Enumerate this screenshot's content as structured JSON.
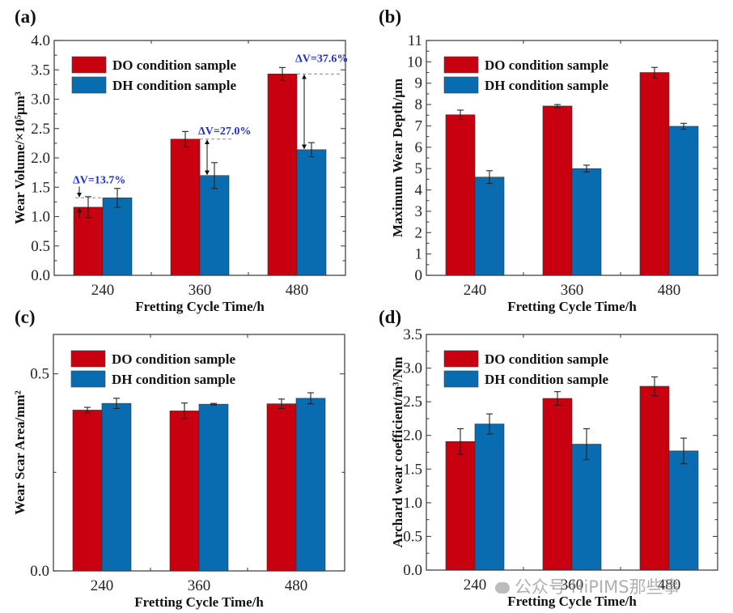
{
  "colors": {
    "DO": "#c8000f",
    "DH": "#0a6cb0",
    "annotation": "#1f2fd0"
  },
  "watermark": "公众号·HiPIMS那些事",
  "chart_data": [
    {
      "panel": "(a)",
      "type": "bar",
      "categories": [
        "240",
        "360",
        "480"
      ],
      "xlabel": "Fretting Cycle Time/h",
      "ylabel": "Wear Volume/×10⁵μm³",
      "ylim": [
        0,
        4.0
      ],
      "yticks": [
        "0.0",
        "0.5",
        "1.0",
        "1.5",
        "2.0",
        "2.5",
        "3.0",
        "3.5",
        "4.0"
      ],
      "ytick_values": [
        0,
        0.5,
        1,
        1.5,
        2,
        2.5,
        3,
        3.5,
        4
      ],
      "legend": [
        "DO condition sample",
        "DH condition sample"
      ],
      "legend_position": "top-left",
      "series": [
        {
          "name": "DO condition sample",
          "values": [
            1.16,
            2.32,
            3.43
          ],
          "errors": [
            0.18,
            0.13,
            0.11
          ]
        },
        {
          "name": "DH condition sample",
          "values": [
            1.32,
            1.7,
            2.14
          ],
          "errors": [
            0.16,
            0.22,
            0.12
          ]
        }
      ],
      "annotations": [
        "ΔV=13.7%",
        "ΔV=27.0%",
        "ΔV=37.6%"
      ]
    },
    {
      "panel": "(b)",
      "type": "bar",
      "categories": [
        "240",
        "360",
        "480"
      ],
      "xlabel": "Fretting Cycle Time/h",
      "ylabel": "Maximum Wear Depth/μm",
      "ylim": [
        0,
        11
      ],
      "yticks": [
        "0",
        "1",
        "2",
        "3",
        "4",
        "5",
        "6",
        "7",
        "8",
        "9",
        "10",
        "11"
      ],
      "ytick_values": [
        0,
        1,
        2,
        3,
        4,
        5,
        6,
        7,
        8,
        9,
        10,
        11
      ],
      "legend": [
        "DO condition sample",
        "DH condition sample"
      ],
      "legend_position": "top-left",
      "series": [
        {
          "name": "DO condition sample",
          "values": [
            7.52,
            7.93,
            9.5
          ],
          "errors": [
            0.22,
            0.07,
            0.24
          ]
        },
        {
          "name": "DH condition sample",
          "values": [
            4.6,
            5.0,
            6.98
          ],
          "errors": [
            0.3,
            0.16,
            0.14
          ]
        }
      ]
    },
    {
      "panel": "(c)",
      "type": "bar",
      "categories": [
        "240",
        "360",
        "480"
      ],
      "xlabel": "Fretting Cycle Time/h",
      "ylabel": "Wear Scar Area/mm²",
      "ylim": [
        0,
        0.6
      ],
      "yticks": [
        "0.0",
        "0.5"
      ],
      "ytick_values": [
        0,
        0.5
      ],
      "legend": [
        "DO condition sample",
        "DH condition sample"
      ],
      "legend_position": "top-left",
      "series": [
        {
          "name": "DO condition sample",
          "values": [
            0.408,
            0.406,
            0.424
          ],
          "errors": [
            0.007,
            0.02,
            0.012
          ]
        },
        {
          "name": "DH condition sample",
          "values": [
            0.425,
            0.423,
            0.438
          ],
          "errors": [
            0.013,
            0.002,
            0.014
          ]
        }
      ]
    },
    {
      "panel": "(d)",
      "type": "bar",
      "categories": [
        "240",
        "360",
        "480"
      ],
      "xlabel": "Fretting Cycle Time/h",
      "ylabel": "Archard wear coefficient/m³/Nm",
      "ylim": [
        0,
        3.5
      ],
      "yticks": [
        "0.0",
        "0.5",
        "1.0",
        "1.5",
        "2.0",
        "2.5",
        "3.0",
        "3.5"
      ],
      "ytick_values": [
        0,
        0.5,
        1,
        1.5,
        2,
        2.5,
        3,
        3.5
      ],
      "legend": [
        "DO condition sample",
        "DH condition sample"
      ],
      "legend_position": "top-left",
      "series": [
        {
          "name": "DO condition sample",
          "values": [
            1.91,
            2.55,
            2.73
          ],
          "errors": [
            0.19,
            0.1,
            0.14
          ]
        },
        {
          "name": "DH condition sample",
          "values": [
            2.17,
            1.87,
            1.77
          ],
          "errors": [
            0.15,
            0.23,
            0.19
          ]
        }
      ]
    }
  ]
}
